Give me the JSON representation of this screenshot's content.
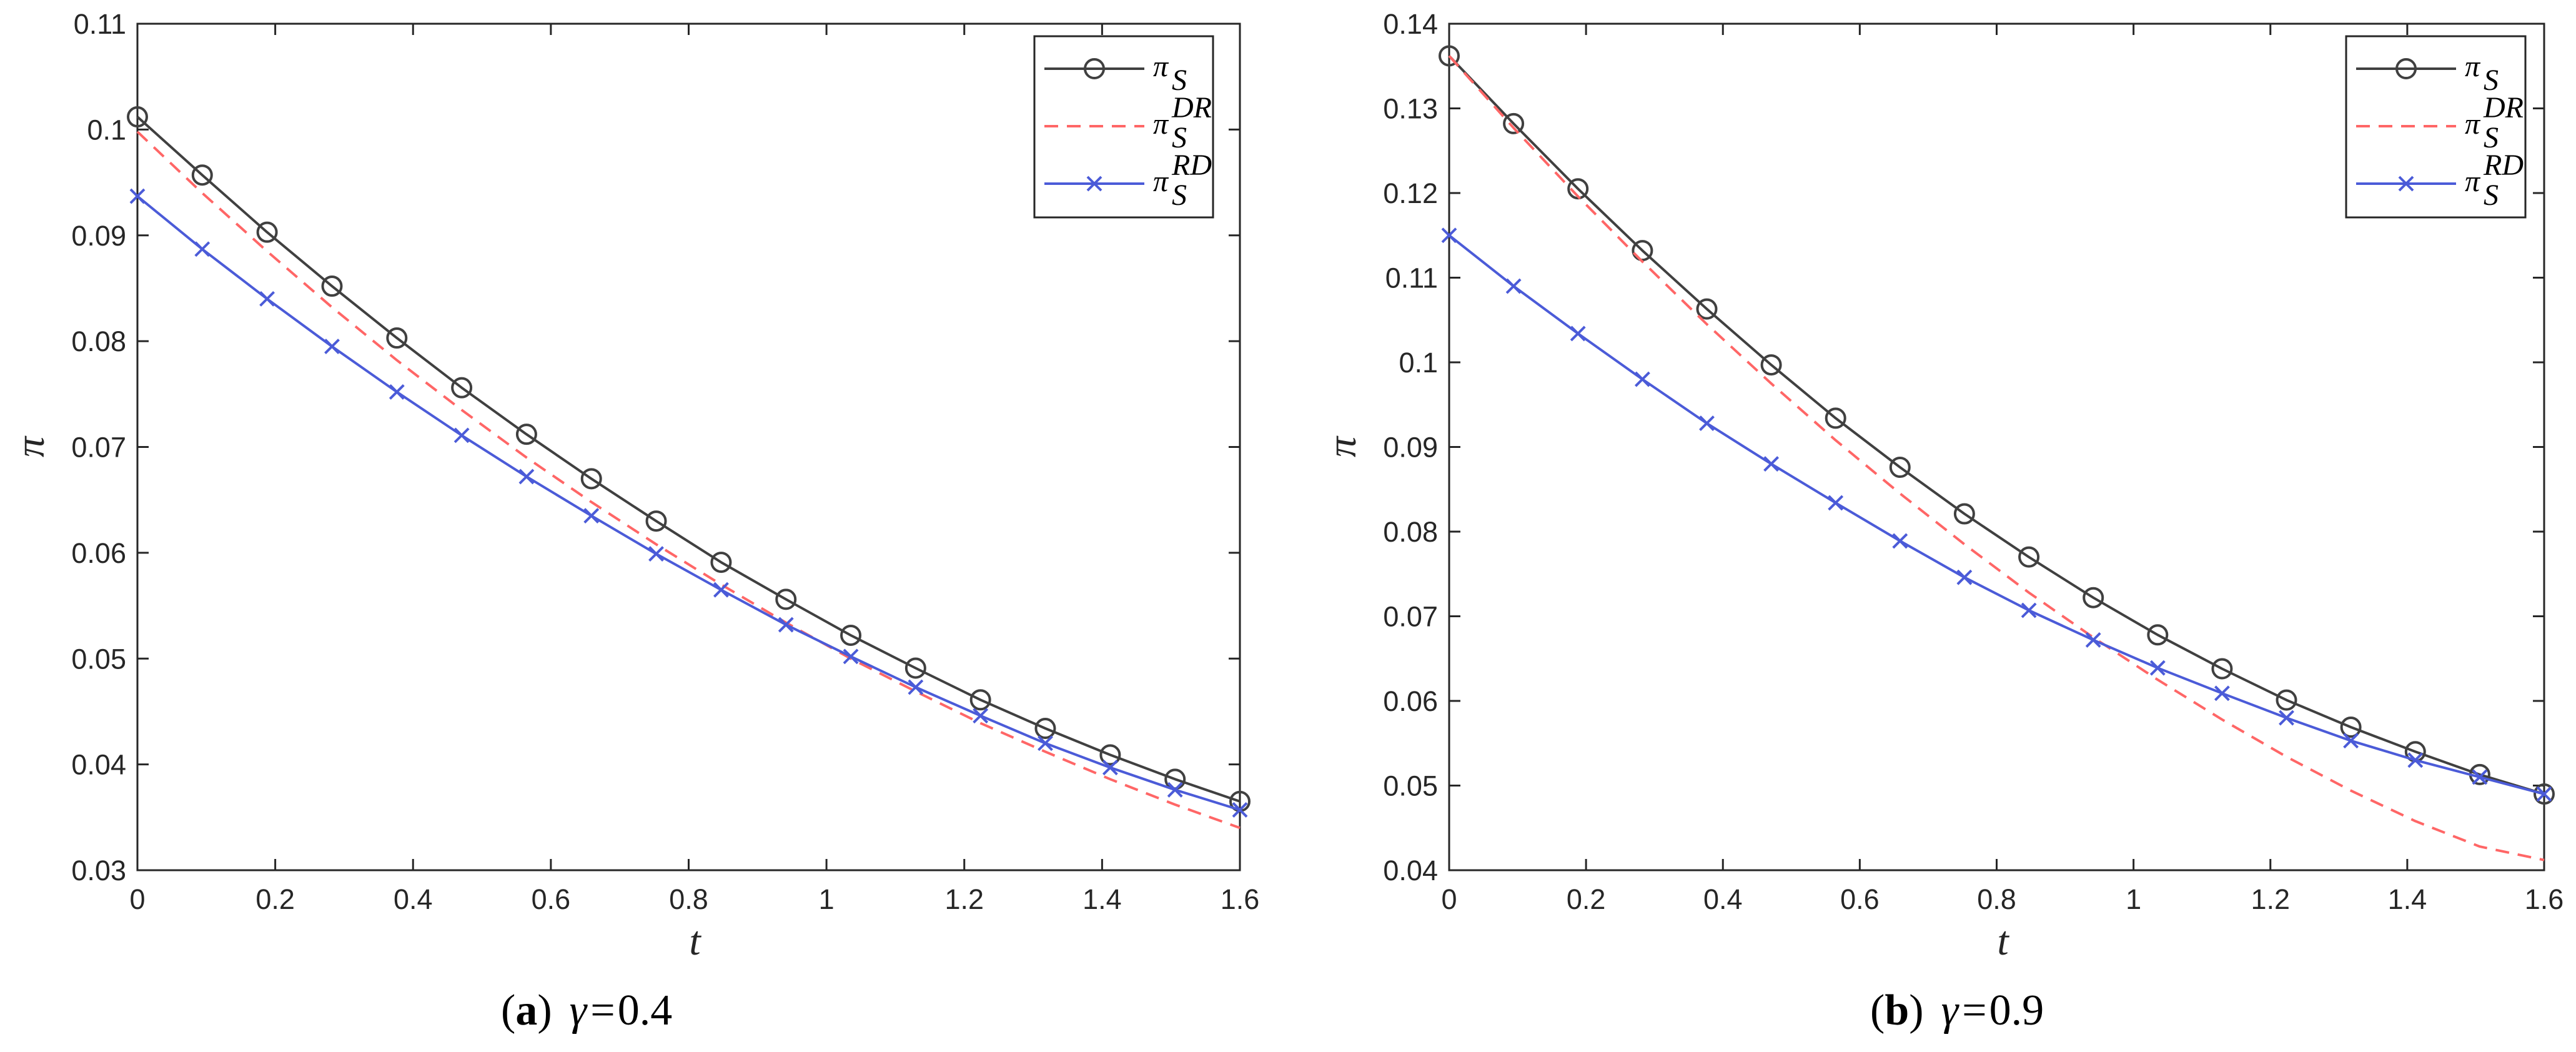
{
  "chart_data": [
    {
      "type": "line",
      "caption": {
        "label": "a",
        "symbol": "γ",
        "eq": "=",
        "value": "0.4"
      },
      "xlabel": "t",
      "ylabel": "π",
      "xlim": [
        0,
        1.6
      ],
      "ylim": [
        0.03,
        0.11
      ],
      "x_ticks": [
        "0",
        "0.2",
        "0.4",
        "0.6",
        "0.8",
        "1",
        "1.2",
        "1.4",
        "1.6"
      ],
      "y_ticks": [
        "0.03",
        "0.04",
        "0.05",
        "0.06",
        "0.07",
        "0.08",
        "0.09",
        "0.1",
        "0.11"
      ],
      "grid": false,
      "legend_position": "top-right",
      "x": [
        0,
        0.0941,
        0.1882,
        0.2824,
        0.3765,
        0.4706,
        0.5647,
        0.6588,
        0.7529,
        0.8471,
        0.9412,
        1.0353,
        1.1294,
        1.2235,
        1.3176,
        1.4118,
        1.5059,
        1.6
      ],
      "series": [
        {
          "base": "π",
          "sub": "S",
          "sup": "",
          "color": "#404040",
          "dash": "none",
          "marker": "circle",
          "values": [
            0.1012,
            0.0957,
            0.0903,
            0.0852,
            0.0803,
            0.0756,
            0.0712,
            0.067,
            0.063,
            0.0591,
            0.0556,
            0.0522,
            0.0491,
            0.0461,
            0.0434,
            0.0409,
            0.0386,
            0.0365
          ]
        },
        {
          "base": "π",
          "sub": "S",
          "sup": "DR",
          "color": "#ff6666",
          "dash": "22,14",
          "marker": "none",
          "values": [
            0.0998,
            0.094,
            0.0885,
            0.0832,
            0.0782,
            0.0735,
            0.069,
            0.0648,
            0.0608,
            0.057,
            0.0534,
            0.05,
            0.0469,
            0.0439,
            0.0412,
            0.0386,
            0.0362,
            0.034
          ]
        },
        {
          "base": "π",
          "sub": "S",
          "sup": "RD",
          "color": "#4b5bd8",
          "dash": "none",
          "marker": "x",
          "values": [
            0.0937,
            0.0887,
            0.084,
            0.0795,
            0.0752,
            0.0711,
            0.0672,
            0.0635,
            0.0599,
            0.0565,
            0.0532,
            0.0502,
            0.0473,
            0.0446,
            0.042,
            0.0397,
            0.0376,
            0.0357
          ]
        }
      ]
    },
    {
      "type": "line",
      "caption": {
        "label": "b",
        "symbol": "γ",
        "eq": "=",
        "value": "0.9"
      },
      "xlabel": "t",
      "ylabel": "π",
      "xlim": [
        0,
        1.6
      ],
      "ylim": [
        0.04,
        0.14
      ],
      "x_ticks": [
        "0",
        "0.2",
        "0.4",
        "0.6",
        "0.8",
        "1",
        "1.2",
        "1.4",
        "1.6"
      ],
      "y_ticks": [
        "0.04",
        "0.05",
        "0.06",
        "0.07",
        "0.08",
        "0.09",
        "0.1",
        "0.11",
        "0.12",
        "0.13",
        "0.14"
      ],
      "grid": false,
      "legend_position": "top-right",
      "x": [
        0,
        0.0941,
        0.1882,
        0.2824,
        0.3765,
        0.4706,
        0.5647,
        0.6588,
        0.7529,
        0.8471,
        0.9412,
        1.0353,
        1.1294,
        1.2235,
        1.3176,
        1.4118,
        1.5059,
        1.6
      ],
      "series": [
        {
          "base": "π",
          "sub": "S",
          "sup": "",
          "color": "#404040",
          "dash": "none",
          "marker": "circle",
          "values": [
            0.1362,
            0.1282,
            0.1205,
            0.1132,
            0.1063,
            0.0997,
            0.0934,
            0.0876,
            0.0821,
            0.077,
            0.0722,
            0.0678,
            0.0638,
            0.0601,
            0.0569,
            0.054,
            0.0513,
            0.049
          ]
        },
        {
          "base": "π",
          "sub": "S",
          "sup": "DR",
          "color": "#ff6666",
          "dash": "22,14",
          "marker": "none",
          "values": [
            0.1362,
            0.1277,
            0.1196,
            0.1119,
            0.1045,
            0.0975,
            0.0908,
            0.0845,
            0.0785,
            0.0728,
            0.0675,
            0.0625,
            0.0578,
            0.0534,
            0.0494,
            0.0458,
            0.0428,
            0.0412
          ]
        },
        {
          "base": "π",
          "sub": "S",
          "sup": "RD",
          "color": "#4b5bd8",
          "dash": "none",
          "marker": "x",
          "values": [
            0.115,
            0.109,
            0.1034,
            0.098,
            0.0928,
            0.088,
            0.0834,
            0.0789,
            0.0746,
            0.0707,
            0.0672,
            0.0639,
            0.0609,
            0.058,
            0.0553,
            0.053,
            0.051,
            0.049
          ]
        }
      ]
    }
  ]
}
